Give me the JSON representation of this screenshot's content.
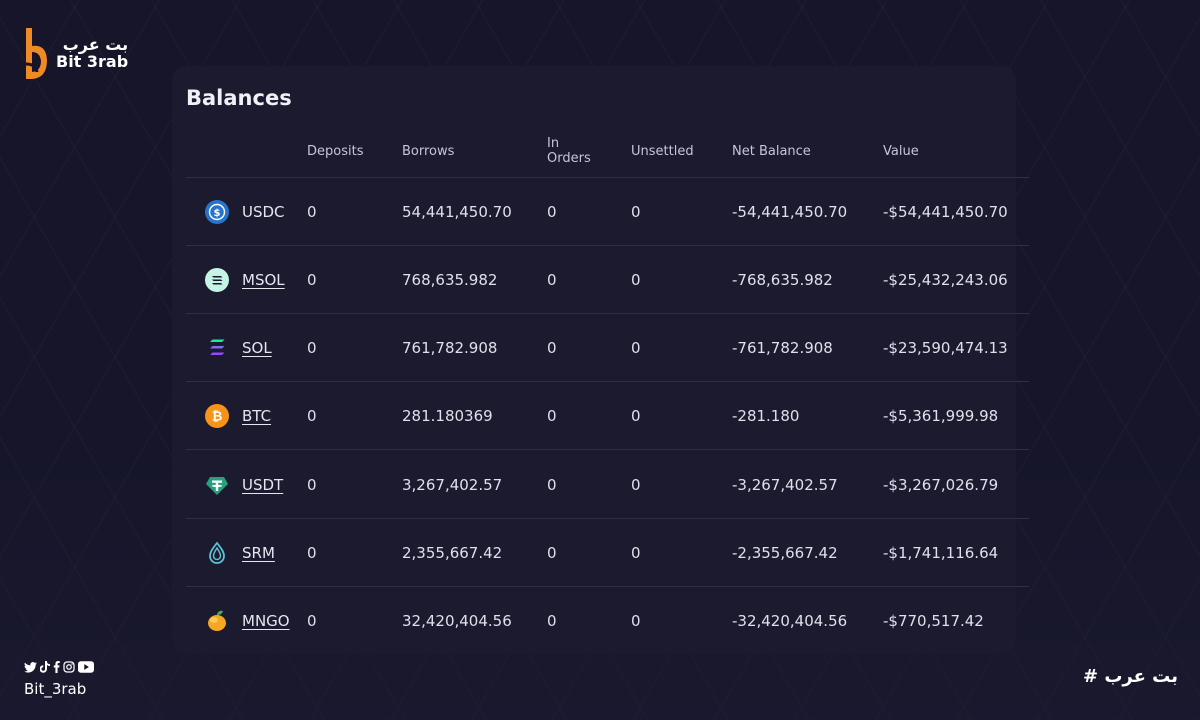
{
  "brand": {
    "arabic": "بت عرب",
    "latin": "Bit 3rab"
  },
  "footer": {
    "handle": "Bit_3rab",
    "hashtag": "# بت عرب",
    "social_icons": [
      "twitter-icon",
      "tiktok-icon",
      "facebook-icon",
      "instagram-icon",
      "youtube-icon"
    ]
  },
  "title": "Balances",
  "columns": {
    "deposits": "Deposits",
    "borrows": "Borrows",
    "in_orders_line1": "In",
    "in_orders_line2": "Orders",
    "unsettled": "Unsettled",
    "net_balance": "Net Balance",
    "value": "Value"
  },
  "rows": [
    {
      "asset": "USDC",
      "deposits": "0",
      "borrows": "54,441,450.70",
      "in_orders": "0",
      "unsettled": "0",
      "net_balance": "-54,441,450.70",
      "value": "-$54,441,450.70",
      "icon": "usdc-icon",
      "color": "#2775ca"
    },
    {
      "asset": "MSOL",
      "deposits": "0",
      "borrows": "768,635.982",
      "in_orders": "0",
      "unsettled": "0",
      "net_balance": "-768,635.982",
      "value": "-$25,432,243.06",
      "icon": "msol-icon",
      "color": "#c6f4e4"
    },
    {
      "asset": "SOL",
      "deposits": "0",
      "borrows": "761,782.908",
      "in_orders": "0",
      "unsettled": "0",
      "net_balance": "-761,782.908",
      "value": "-$23,590,474.13",
      "icon": "sol-icon",
      "color": "#9945ff"
    },
    {
      "asset": "BTC",
      "deposits": "0",
      "borrows": "281.180369",
      "in_orders": "0",
      "unsettled": "0",
      "net_balance": "-281.180",
      "value": "-$5,361,999.98",
      "icon": "btc-icon",
      "color": "#f7931a"
    },
    {
      "asset": "USDT",
      "deposits": "0",
      "borrows": "3,267,402.57",
      "in_orders": "0",
      "unsettled": "0",
      "net_balance": "-3,267,402.57",
      "value": "-$3,267,026.79",
      "icon": "usdt-icon",
      "color": "#26a17b"
    },
    {
      "asset": "SRM",
      "deposits": "0",
      "borrows": "2,355,667.42",
      "in_orders": "0",
      "unsettled": "0",
      "net_balance": "-2,355,667.42",
      "value": "-$1,741,116.64",
      "icon": "srm-icon",
      "color": "#5ec2d6"
    },
    {
      "asset": "MNGO",
      "deposits": "0",
      "borrows": "32,420,404.56",
      "in_orders": "0",
      "unsettled": "0",
      "net_balance": "-32,420,404.56",
      "value": "-$770,517.42",
      "icon": "mngo-icon",
      "color": "#f5a623"
    }
  ]
}
